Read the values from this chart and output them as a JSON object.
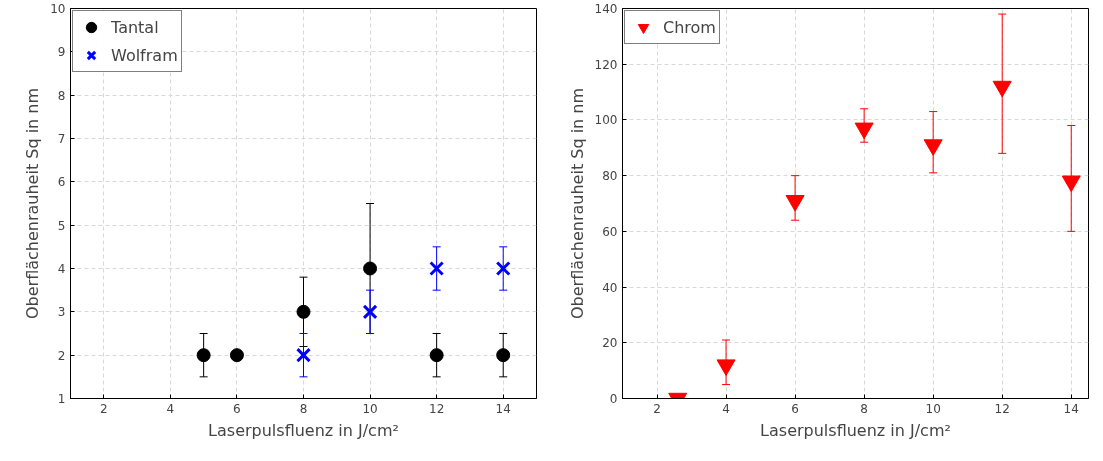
{
  "chart_data": [
    {
      "type": "scatter",
      "xlabel": "Laserpulsfluenz in J/cm²",
      "ylabel": "Oberflächenrauheit Sq in nm",
      "xlim": [
        1,
        15
      ],
      "ylim": [
        1,
        10
      ],
      "xticks": [
        2,
        4,
        6,
        8,
        10,
        12,
        14
      ],
      "yticks": [
        1,
        2,
        3,
        4,
        5,
        6,
        7,
        8,
        9,
        10
      ],
      "grid": true,
      "legend": "top left",
      "series": [
        {
          "name": "Tantal",
          "color": "#000000",
          "marker": "circle",
          "x": [
            5,
            6,
            8,
            10,
            12,
            14
          ],
          "values": [
            2,
            2,
            3,
            4,
            2,
            2
          ],
          "errors": [
            0.5,
            null,
            0.8,
            1.5,
            0.5,
            0.5
          ]
        },
        {
          "name": "Wolfram",
          "color": "#0000ff",
          "marker": "cross",
          "x": [
            8,
            10,
            12,
            14
          ],
          "values": [
            2,
            3,
            4,
            4
          ],
          "errors": [
            0.5,
            0.5,
            0.5,
            0.5
          ]
        }
      ]
    },
    {
      "type": "scatter",
      "xlabel": "Laserpulsfluenz in J/cm²",
      "ylabel": "Oberflächenrauheit Sq in nm",
      "xlim": [
        1,
        14.5
      ],
      "ylim": [
        0,
        140
      ],
      "xticks": [
        2,
        4,
        6,
        8,
        10,
        12,
        14
      ],
      "yticks": [
        0,
        20,
        40,
        60,
        80,
        100,
        120,
        140
      ],
      "grid": true,
      "legend": "top left",
      "series": [
        {
          "name": "Chrom",
          "color": "#ff0000",
          "marker": "triangle",
          "x": [
            2.6,
            4,
            6,
            8,
            10,
            12,
            14
          ],
          "values": [
            0,
            12,
            71,
            97,
            91,
            112,
            78
          ],
          "errors": [
            null,
            [
              5,
              21
            ],
            [
              64,
              80
            ],
            [
              92,
              104
            ],
            [
              81,
              103
            ],
            [
              88,
              138
            ],
            [
              60,
              98
            ]
          ]
        }
      ]
    }
  ]
}
